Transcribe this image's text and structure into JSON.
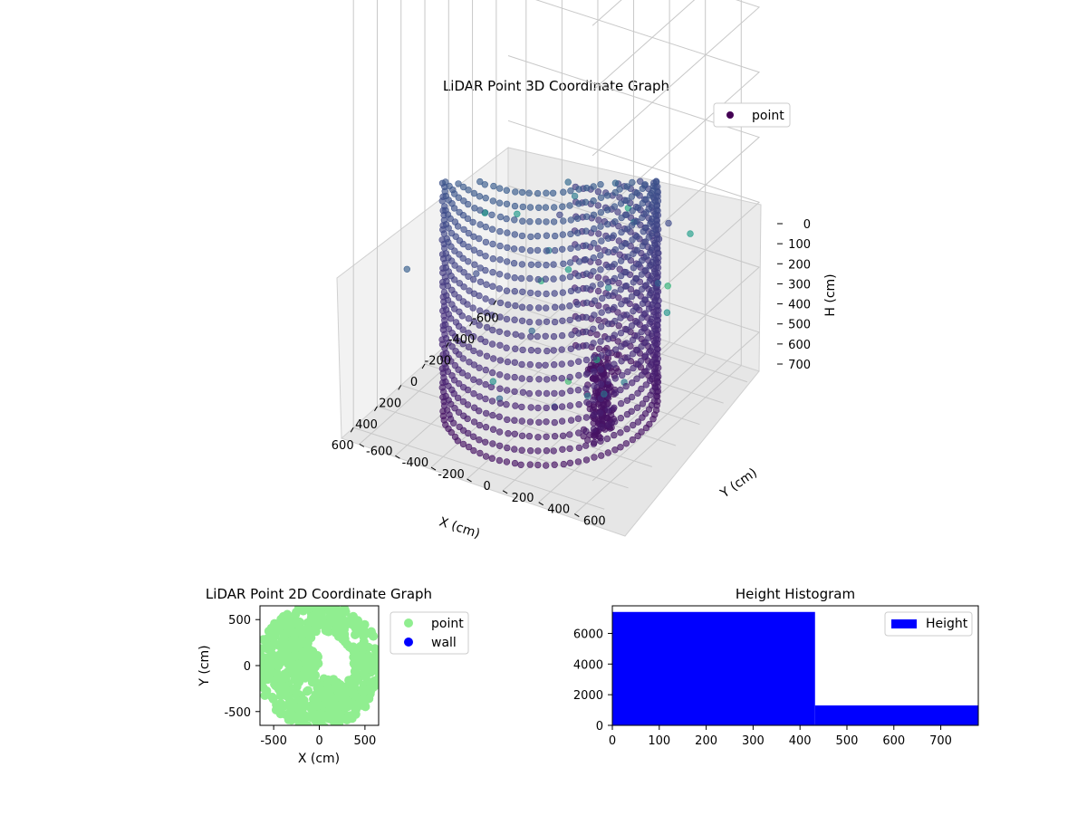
{
  "chart_data": [
    {
      "type": "scatter",
      "projection": "3d",
      "title": "LiDAR Point 3D Coordinate Graph",
      "xlabel": "X (cm)",
      "ylabel": "Y (cm)",
      "zlabel": "H (cm)",
      "xlim": [
        -700,
        700
      ],
      "ylim": [
        -700,
        700
      ],
      "zlim": [
        760,
        0
      ],
      "xticks": [
        -600,
        -400,
        -200,
        0,
        200,
        400,
        600
      ],
      "yticks": [
        -600,
        -400,
        -200,
        0,
        200,
        400,
        600
      ],
      "zticks": [
        0,
        100,
        200,
        300,
        400,
        500,
        600,
        700
      ],
      "zaxis_inverted": true,
      "colormap": "viridis",
      "legend": {
        "placement": "upper-right",
        "entries": [
          {
            "label": "point",
            "color": "#440154"
          }
        ]
      },
      "grid": true,
      "series": [
        {
          "name": "point",
          "shape": "cylindrical wall",
          "radius": 500,
          "angle_range_deg": [
            -55,
            200
          ],
          "z_range": [
            0,
            550
          ]
        },
        {
          "name": "point",
          "shape": "floor disc",
          "radius": 480,
          "z": 700
        },
        {
          "name": "point",
          "shape": "dense cluster",
          "x": 100,
          "y": 350,
          "z_range": [
            0,
            120
          ]
        }
      ]
    },
    {
      "type": "scatter",
      "title": "LiDAR Point 2D Coordinate Graph",
      "xlabel": "X (cm)",
      "ylabel": "Y (cm)",
      "xlim": [
        -650,
        650
      ],
      "ylim": [
        -650,
        650
      ],
      "xticks": [
        -500,
        0,
        500
      ],
      "yticks": [
        -500,
        0,
        500
      ],
      "legend": {
        "placement": "outside-right",
        "entries": [
          {
            "label": "point",
            "color": "#90ee90"
          },
          {
            "label": "wall",
            "color": "#0000ff"
          }
        ]
      },
      "grid": false
    },
    {
      "type": "bar",
      "subtype": "histogram",
      "title": "Height Histogram",
      "xlim": [
        0,
        780
      ],
      "ylim": [
        0,
        7800
      ],
      "xticks": [
        0,
        100,
        200,
        300,
        400,
        500,
        600,
        700
      ],
      "yticks": [
        0,
        2000,
        4000,
        6000
      ],
      "bins": [
        {
          "x0": 0,
          "x1": 432,
          "count": 7400
        },
        {
          "x0": 432,
          "x1": 780,
          "count": 1300
        }
      ],
      "legend": {
        "placement": "upper-right",
        "entries": [
          {
            "label": "Height",
            "color": "#0000ff"
          }
        ]
      },
      "grid": false
    }
  ]
}
